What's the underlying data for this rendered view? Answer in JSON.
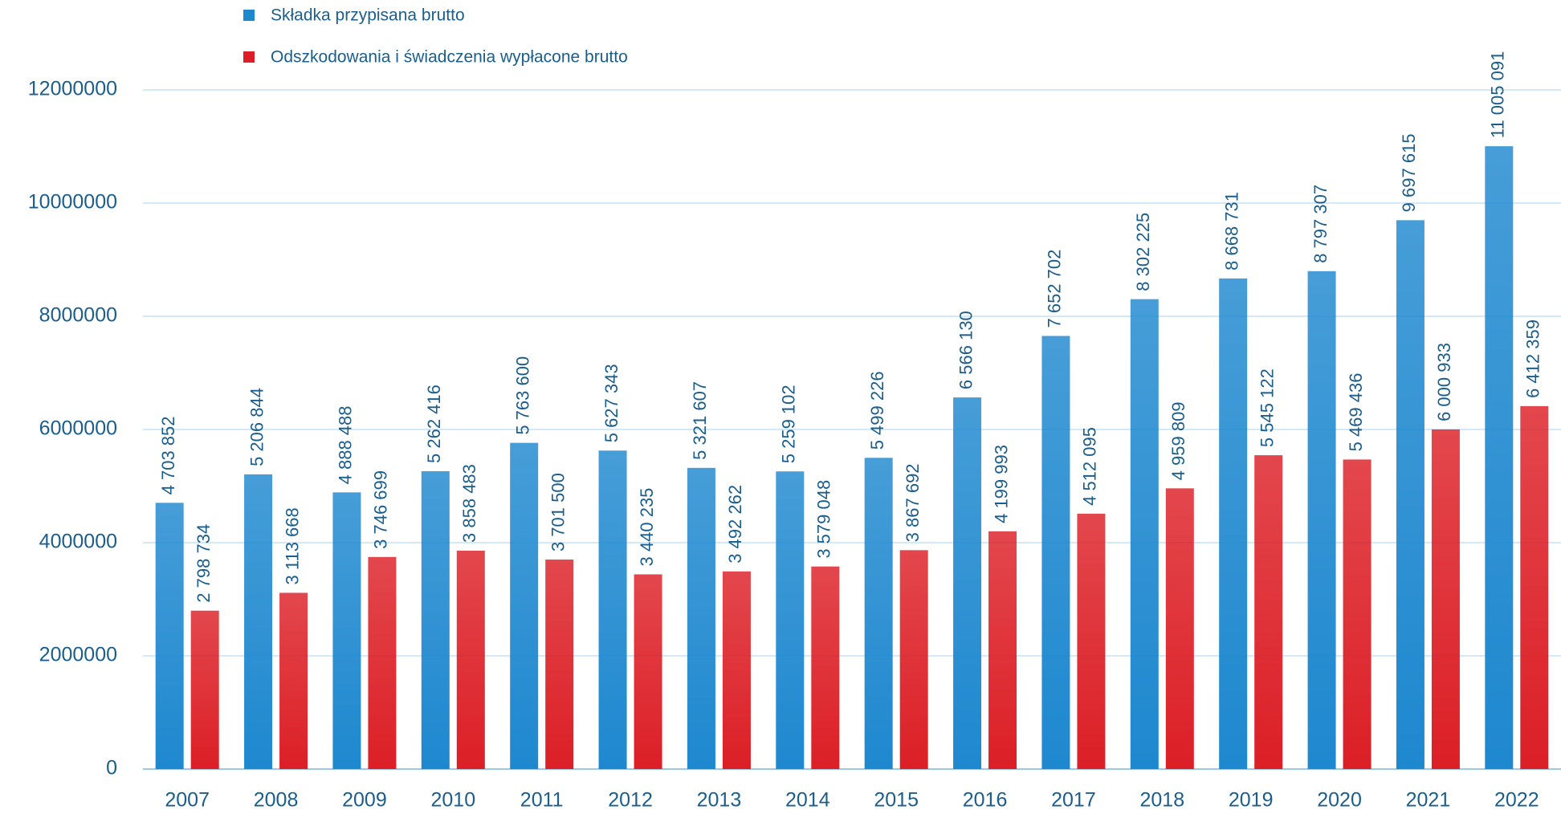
{
  "chart_data": {
    "type": "bar",
    "categories": [
      "2007",
      "2008",
      "2009",
      "2010",
      "2011",
      "2012",
      "2013",
      "2014",
      "2015",
      "2016",
      "2017",
      "2018",
      "2019",
      "2020",
      "2021",
      "2022"
    ],
    "series": [
      {
        "name": "Składka przypisana brutto",
        "color": "#1e88cf",
        "values": [
          4703852,
          5206844,
          4888488,
          5262416,
          5763600,
          5627343,
          5321607,
          5259102,
          5499226,
          6566130,
          7652702,
          8302225,
          8668731,
          8797307,
          9697615,
          11005091
        ],
        "value_labels": [
          "4 703 852",
          "5 206 844",
          "4 888 488",
          "5 262 416",
          "5 763 600",
          "5 627 343",
          "5 321 607",
          "5 259 102",
          "5 499 226",
          "6 566 130",
          "7 652 702",
          "8 302 225",
          "8 668 731",
          "8 797 307",
          "9 697 615",
          "11 005 091"
        ]
      },
      {
        "name": "Odszkodowania i świadczenia wypłacone brutto",
        "color": "#dc1f26",
        "values": [
          2798734,
          3113668,
          3746699,
          3858483,
          3701500,
          3440235,
          3492262,
          3579048,
          3867692,
          4199993,
          4512095,
          4959809,
          5545122,
          5469436,
          6000933,
          6412359
        ],
        "value_labels": [
          "2 798 734",
          "3 113 668",
          "3 746 699",
          "3 858 483",
          "3 701 500",
          "3 440 235",
          "3 492 262",
          "3 579 048",
          "3 867 692",
          "4 199 993",
          "4 512 095",
          "4 959 809",
          "5 545 122",
          "5 469 436",
          "6 000 933",
          "6 412 359"
        ]
      }
    ],
    "ylim": [
      0,
      12000000
    ],
    "yticks": [
      0,
      2000000,
      4000000,
      6000000,
      8000000,
      10000000,
      12000000
    ],
    "grid": true
  }
}
